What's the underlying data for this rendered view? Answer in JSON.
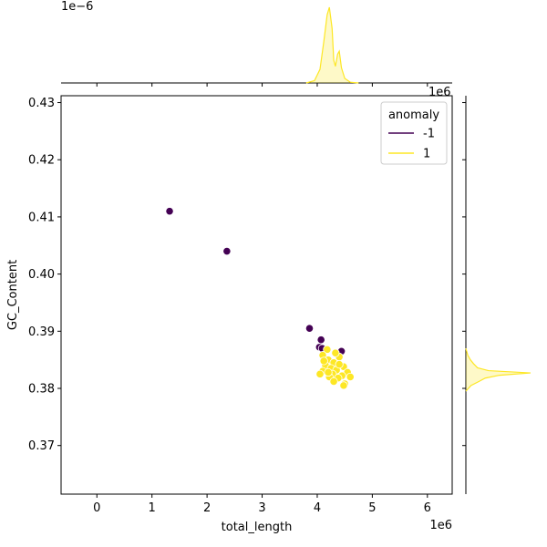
{
  "chart_data": {
    "type": "scatter",
    "subtype": "jointplot-with-marginal-kde",
    "xlabel": "total_length",
    "ylabel": "GC_Content",
    "x_scale_label": "1e6",
    "y_scale_label": "",
    "top_marginal_scale_label": "1e−6",
    "right_marginal_scale_label": "1e6",
    "xlim": [
      -0.65,
      6.45
    ],
    "ylim": [
      0.3615,
      0.4312
    ],
    "x_ticks": [
      0,
      1,
      2,
      3,
      4,
      5,
      6
    ],
    "x_tick_labels": [
      "0",
      "1",
      "2",
      "3",
      "4",
      "5",
      "6"
    ],
    "y_ticks": [
      0.37,
      0.38,
      0.39,
      0.4,
      0.41,
      0.42,
      0.43
    ],
    "y_tick_labels": [
      "0.37",
      "0.38",
      "0.39",
      "0.40",
      "0.41",
      "0.42",
      "0.43"
    ],
    "grid": false,
    "legend": {
      "title": "anomaly",
      "placement": "top-right",
      "entries": [
        "-1",
        "1"
      ]
    },
    "colors": {
      "-1": "#440154",
      "1": "#fde725"
    },
    "series": [
      {
        "name": "-1",
        "points": [
          [
            1.32,
            0.411
          ],
          [
            2.36,
            0.404
          ],
          [
            3.86,
            0.3905
          ],
          [
            4.07,
            0.3885
          ],
          [
            4.04,
            0.3872
          ],
          [
            4.44,
            0.3865
          ],
          [
            4.09,
            0.387
          ]
        ]
      },
      {
        "name": "1",
        "points": [
          [
            4.18,
            0.3868
          ],
          [
            4.1,
            0.3858
          ],
          [
            4.4,
            0.3855
          ],
          [
            4.2,
            0.385
          ],
          [
            4.3,
            0.3845
          ],
          [
            4.15,
            0.384
          ],
          [
            4.48,
            0.3838
          ],
          [
            4.25,
            0.3835
          ],
          [
            4.35,
            0.3832
          ],
          [
            4.1,
            0.383
          ],
          [
            4.55,
            0.3828
          ],
          [
            4.28,
            0.3825
          ],
          [
            4.05,
            0.3825
          ],
          [
            4.45,
            0.3822
          ],
          [
            4.22,
            0.382
          ],
          [
            4.38,
            0.3818
          ],
          [
            4.6,
            0.382
          ],
          [
            4.3,
            0.3812
          ],
          [
            4.5,
            0.3808
          ],
          [
            4.48,
            0.3805
          ],
          [
            4.2,
            0.3828
          ],
          [
            4.4,
            0.3842
          ],
          [
            4.12,
            0.3848
          ],
          [
            4.33,
            0.3862
          ]
        ]
      }
    ],
    "marginal_x_kde": {
      "name": "1",
      "points": [
        [
          3.8,
          0.0
        ],
        [
          3.95,
          0.03
        ],
        [
          4.05,
          0.18
        ],
        [
          4.12,
          0.55
        ],
        [
          4.18,
          0.9
        ],
        [
          4.22,
          1.0
        ],
        [
          4.27,
          0.72
        ],
        [
          4.3,
          0.3
        ],
        [
          4.33,
          0.22
        ],
        [
          4.37,
          0.38
        ],
        [
          4.4,
          0.42
        ],
        [
          4.44,
          0.2
        ],
        [
          4.5,
          0.06
        ],
        [
          4.6,
          0.01
        ],
        [
          4.75,
          0.0
        ]
      ]
    },
    "marginal_y_kde": {
      "name": "1",
      "points": [
        [
          0.3795,
          0.0
        ],
        [
          0.3805,
          0.08
        ],
        [
          0.3812,
          0.2
        ],
        [
          0.3818,
          0.3
        ],
        [
          0.3823,
          0.52
        ],
        [
          0.3827,
          1.0
        ],
        [
          0.3831,
          0.35
        ],
        [
          0.3836,
          0.18
        ],
        [
          0.3843,
          0.12
        ],
        [
          0.385,
          0.07
        ],
        [
          0.3858,
          0.03
        ],
        [
          0.387,
          0.0
        ]
      ]
    }
  }
}
